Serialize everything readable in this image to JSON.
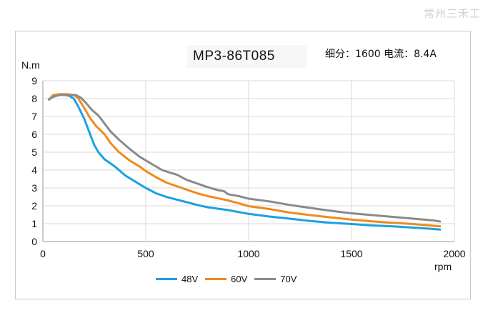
{
  "watermark": "常州三禾工",
  "chart_data": {
    "type": "line",
    "title": "MP3-86T085",
    "subtitle": "细分：1600 电流：8.4A",
    "xlabel": "rpm",
    "ylabel": "N.m",
    "xlim": [
      0,
      2000
    ],
    "ylim": [
      0,
      9
    ],
    "xticks": [
      "0",
      "500",
      "1000",
      "1500",
      "2000"
    ],
    "yticks": [
      "0",
      "1",
      "2",
      "3",
      "4",
      "5",
      "6",
      "7",
      "8",
      "9"
    ],
    "grid": true,
    "legend_position": "bottom",
    "series": [
      {
        "name": "48V",
        "color": "#1ba1e2",
        "points": [
          [
            30,
            7.95
          ],
          [
            50,
            8.15
          ],
          [
            80,
            8.2
          ],
          [
            110,
            8.2
          ],
          [
            130,
            8.15
          ],
          [
            150,
            8.0
          ],
          [
            170,
            7.6
          ],
          [
            200,
            6.9
          ],
          [
            230,
            6.0
          ],
          [
            250,
            5.4
          ],
          [
            270,
            5.0
          ],
          [
            300,
            4.6
          ],
          [
            350,
            4.2
          ],
          [
            400,
            3.7
          ],
          [
            450,
            3.35
          ],
          [
            500,
            3.0
          ],
          [
            550,
            2.7
          ],
          [
            600,
            2.5
          ],
          [
            650,
            2.35
          ],
          [
            700,
            2.2
          ],
          [
            750,
            2.05
          ],
          [
            800,
            1.92
          ],
          [
            900,
            1.76
          ],
          [
            1000,
            1.55
          ],
          [
            1100,
            1.4
          ],
          [
            1200,
            1.28
          ],
          [
            1300,
            1.15
          ],
          [
            1400,
            1.05
          ],
          [
            1500,
            0.98
          ],
          [
            1600,
            0.9
          ],
          [
            1700,
            0.85
          ],
          [
            1800,
            0.78
          ],
          [
            1900,
            0.7
          ],
          [
            1930,
            0.67
          ]
        ]
      },
      {
        "name": "60V",
        "color": "#f08a1c",
        "points": [
          [
            30,
            7.95
          ],
          [
            50,
            8.2
          ],
          [
            80,
            8.25
          ],
          [
            120,
            8.25
          ],
          [
            150,
            8.2
          ],
          [
            170,
            8.05
          ],
          [
            200,
            7.5
          ],
          [
            230,
            6.9
          ],
          [
            260,
            6.45
          ],
          [
            300,
            6.0
          ],
          [
            330,
            5.5
          ],
          [
            370,
            5.0
          ],
          [
            420,
            4.55
          ],
          [
            470,
            4.2
          ],
          [
            500,
            3.95
          ],
          [
            550,
            3.6
          ],
          [
            600,
            3.3
          ],
          [
            650,
            3.1
          ],
          [
            700,
            2.9
          ],
          [
            750,
            2.7
          ],
          [
            800,
            2.55
          ],
          [
            850,
            2.43
          ],
          [
            900,
            2.3
          ],
          [
            950,
            2.15
          ],
          [
            1000,
            1.98
          ],
          [
            1100,
            1.82
          ],
          [
            1200,
            1.62
          ],
          [
            1300,
            1.48
          ],
          [
            1400,
            1.35
          ],
          [
            1500,
            1.23
          ],
          [
            1600,
            1.13
          ],
          [
            1700,
            1.05
          ],
          [
            1800,
            0.98
          ],
          [
            1900,
            0.88
          ],
          [
            1930,
            0.85
          ]
        ]
      },
      {
        "name": "70V",
        "color": "#8a8a8a",
        "points": [
          [
            30,
            7.95
          ],
          [
            50,
            8.1
          ],
          [
            80,
            8.2
          ],
          [
            120,
            8.2
          ],
          [
            160,
            8.2
          ],
          [
            185,
            8.05
          ],
          [
            210,
            7.75
          ],
          [
            240,
            7.35
          ],
          [
            270,
            7.05
          ],
          [
            300,
            6.6
          ],
          [
            330,
            6.15
          ],
          [
            370,
            5.7
          ],
          [
            420,
            5.2
          ],
          [
            470,
            4.75
          ],
          [
            520,
            4.4
          ],
          [
            580,
            4.0
          ],
          [
            620,
            3.85
          ],
          [
            650,
            3.75
          ],
          [
            700,
            3.45
          ],
          [
            750,
            3.25
          ],
          [
            800,
            3.05
          ],
          [
            850,
            2.88
          ],
          [
            880,
            2.82
          ],
          [
            900,
            2.65
          ],
          [
            950,
            2.55
          ],
          [
            1000,
            2.4
          ],
          [
            1100,
            2.25
          ],
          [
            1200,
            2.05
          ],
          [
            1300,
            1.88
          ],
          [
            1400,
            1.72
          ],
          [
            1500,
            1.58
          ],
          [
            1600,
            1.48
          ],
          [
            1700,
            1.38
          ],
          [
            1800,
            1.28
          ],
          [
            1900,
            1.18
          ],
          [
            1930,
            1.12
          ]
        ]
      }
    ]
  }
}
